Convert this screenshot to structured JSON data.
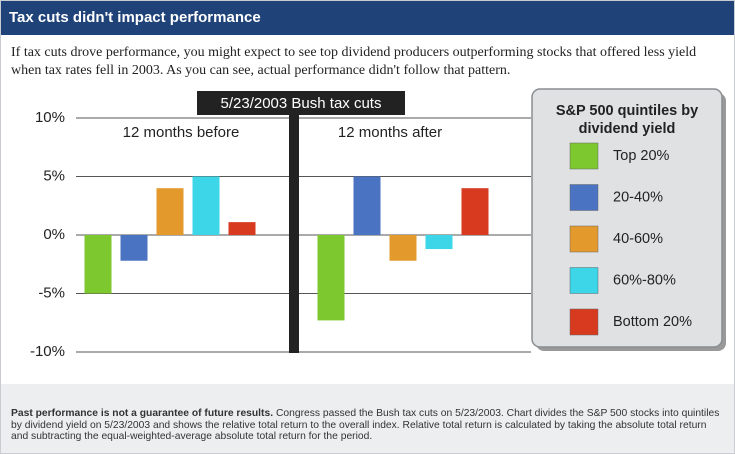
{
  "header": {
    "title": "Tax cuts didn't impact performance"
  },
  "intro": "If tax cuts drove performance, you might expect to see top dividend producers outperforming stocks that offered less yield when tax rates fell in 2003. As you can see, actual performance didn't follow that pattern.",
  "chart_data": {
    "type": "bar",
    "annotation": "5/23/2003 Bush tax cuts",
    "legend_title": "S&P 500 quintiles by dividend yield",
    "categories": [
      "12 months before",
      "12 months after"
    ],
    "series": [
      {
        "name": "Top 20%",
        "color": "#7dc72f",
        "values": [
          -5.0,
          -7.3
        ]
      },
      {
        "name": "20-40%",
        "color": "#4a73c2",
        "values": [
          -2.2,
          5.0
        ]
      },
      {
        "name": "40-60%",
        "color": "#e3992b",
        "values": [
          4.0,
          -2.2
        ]
      },
      {
        "name": "60%-80%",
        "color": "#3cd6e8",
        "values": [
          5.0,
          -1.2
        ]
      },
      {
        "name": "Bottom 20%",
        "color": "#d83a1f",
        "values": [
          1.1,
          4.0
        ]
      }
    ],
    "ylim": [
      -10,
      10
    ],
    "yticks": [
      {
        "value": 10,
        "label": "10%"
      },
      {
        "value": 5,
        "label": "5%"
      },
      {
        "value": 0,
        "label": "0%"
      },
      {
        "value": -5,
        "label": "-5%"
      },
      {
        "value": -10,
        "label": "-10%"
      }
    ],
    "grid": true
  },
  "footnote": {
    "bold": "Past performance is not a guarantee of future results.",
    "text": "Congress passed the Bush tax cuts on 5/23/2003. Chart divides the S&P 500 stocks into quintiles by dividend yield on 5/23/2003 and shows the relative total return to the overall index. Relative total return is calculated by taking the absolute total return and subtracting the equal-weighted-average absolute total return for the period."
  }
}
